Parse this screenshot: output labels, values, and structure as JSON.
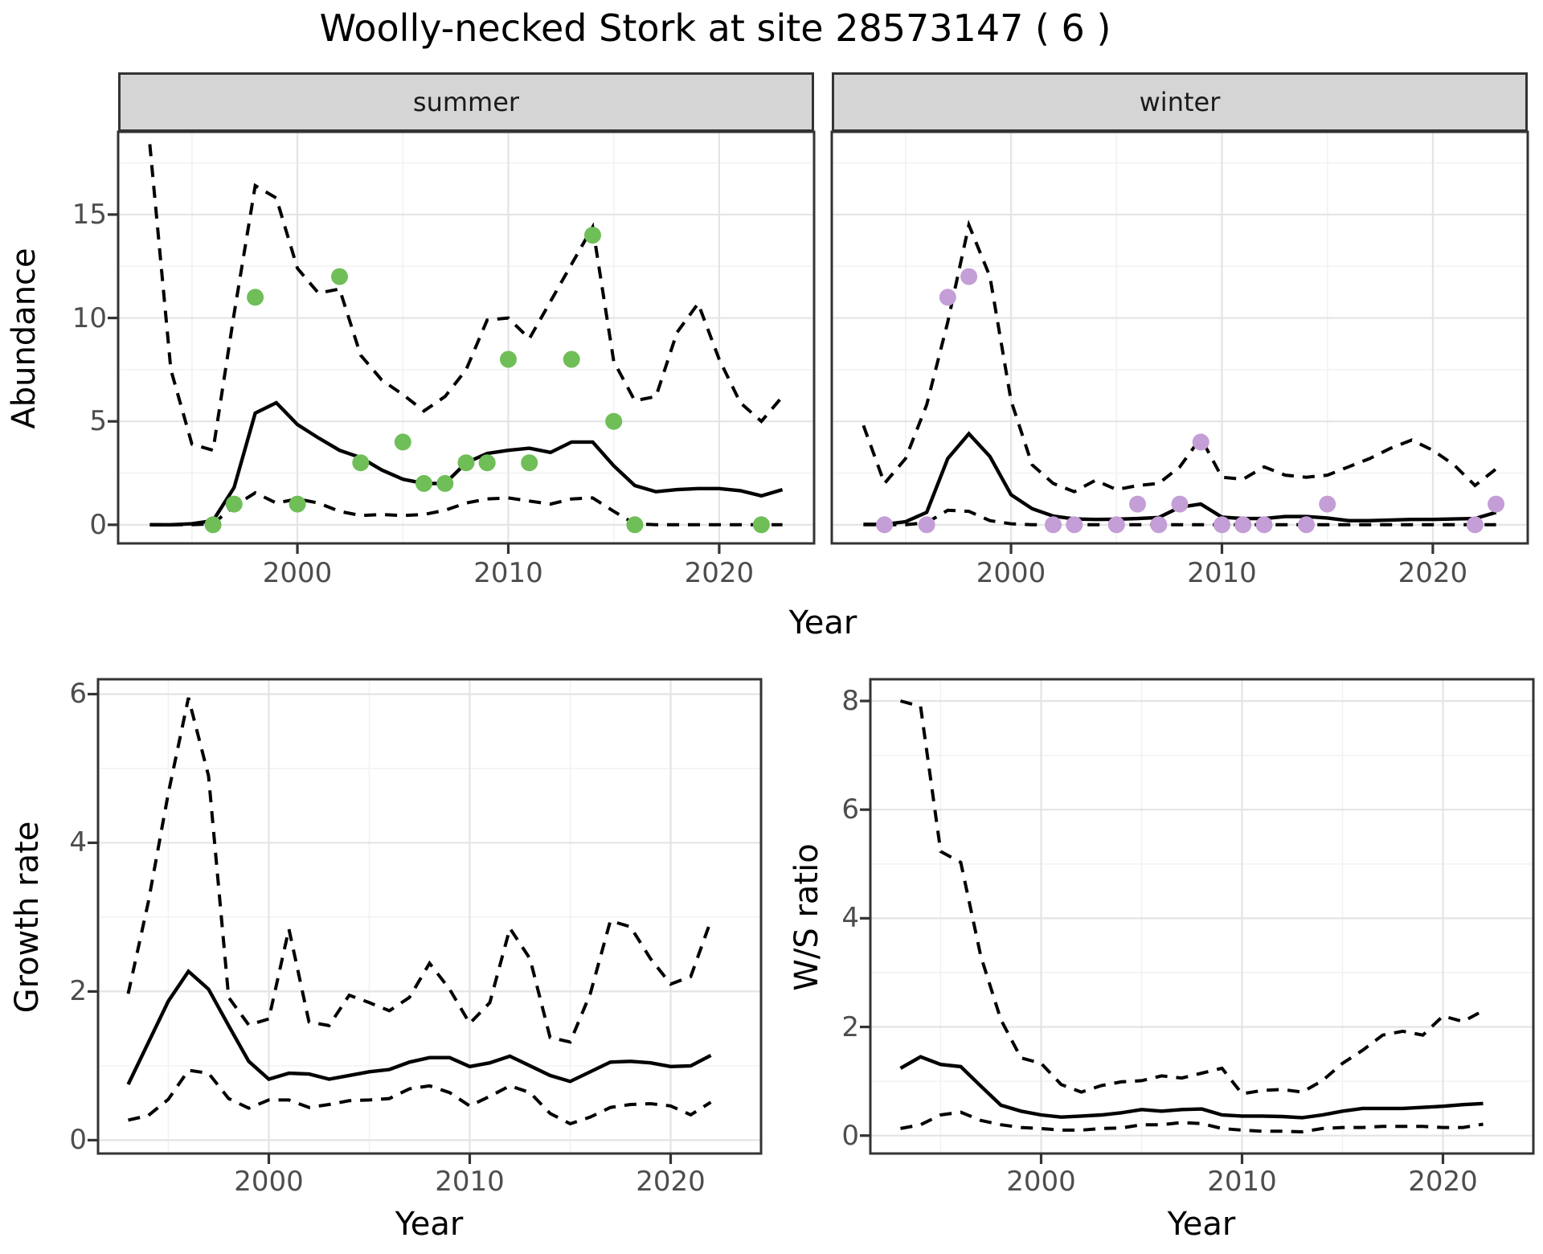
{
  "title": "Woolly-necked Stork at site 28573147 ( 6 )",
  "colors": {
    "summer_points": "#6fbe58",
    "winter_points": "#c49ed6",
    "line": "#000000",
    "strip_bg": "#d5d5d5",
    "panel_border": "#333333",
    "grid_major": "#e4e4e4",
    "grid_minor": "#f2f2f2",
    "tick_label": "#4d4d4d",
    "background": "#ffffff"
  },
  "chart_data": [
    {
      "type": "line",
      "facet_label": "summer",
      "xlabel": "Year",
      "ylabel": "Abundance",
      "xlim": [
        1991.5,
        2024.5
      ],
      "ylim": [
        -0.9,
        19.0
      ],
      "x_ticks": [
        2000,
        2010,
        2020
      ],
      "x_minor_ticks": [
        1995,
        2005,
        2015
      ],
      "y_ticks": [
        0,
        5,
        10,
        15
      ],
      "y_minor_ticks": [
        2.5,
        7.5,
        12.5,
        17.5
      ],
      "grid": true,
      "legend": "none",
      "years": [
        1993,
        1994,
        1995,
        1996,
        1997,
        1998,
        1999,
        2000,
        2001,
        2002,
        2003,
        2004,
        2005,
        2006,
        2007,
        2008,
        2009,
        2010,
        2011,
        2012,
        2013,
        2014,
        2015,
        2016,
        2017,
        2018,
        2019,
        2020,
        2021,
        2022,
        2023
      ],
      "series": [
        {
          "name": "median",
          "style": "solid",
          "values": [
            0,
            0,
            0.05,
            0.2,
            1.8,
            5.4,
            5.9,
            4.85,
            4.2,
            3.6,
            3.25,
            2.65,
            2.2,
            2.0,
            2.0,
            3.0,
            3.45,
            3.6,
            3.7,
            3.5,
            4.0,
            4.0,
            2.85,
            1.9,
            1.6,
            1.7,
            1.75,
            1.75,
            1.65,
            1.4,
            1.7
          ]
        },
        {
          "name": "ci_upper",
          "style": "dashed",
          "values": [
            18.4,
            7.5,
            3.9,
            3.6,
            10.2,
            16.4,
            15.8,
            12.4,
            11.2,
            11.4,
            8.2,
            7.0,
            6.3,
            5.5,
            6.2,
            7.5,
            9.9,
            10.0,
            9.0,
            10.8,
            12.6,
            14.4,
            7.9,
            6.0,
            6.2,
            9.3,
            10.7,
            8.0,
            5.9,
            5.0,
            6.2
          ]
        },
        {
          "name": "ci_lower",
          "style": "dashed",
          "values": [
            0,
            0,
            0,
            0.05,
            0.9,
            1.55,
            1.05,
            1.25,
            1.05,
            0.65,
            0.45,
            0.5,
            0.45,
            0.5,
            0.7,
            1.05,
            1.25,
            1.3,
            1.15,
            1.0,
            1.25,
            1.3,
            0.65,
            0.05,
            0,
            0,
            0,
            0,
            0,
            0,
            0
          ]
        }
      ],
      "points": {
        "name": "observed-counts-summer",
        "color": "#6fbe58",
        "years": [
          1996,
          1997,
          1998,
          2000,
          2002,
          2003,
          2005,
          2006,
          2007,
          2008,
          2009,
          2010,
          2011,
          2013,
          2014,
          2015,
          2016,
          2022
        ],
        "values": [
          0,
          1,
          11,
          1,
          12,
          3,
          4,
          2,
          2,
          3,
          3,
          8,
          3,
          8,
          14,
          5,
          0,
          0
        ]
      }
    },
    {
      "type": "line",
      "facet_label": "winter",
      "xlabel": "Year",
      "ylabel": "Abundance",
      "xlim": [
        1991.5,
        2024.5
      ],
      "ylim": [
        -0.9,
        19.0
      ],
      "x_ticks": [
        2000,
        2010,
        2020
      ],
      "x_minor_ticks": [
        1995,
        2005,
        2015
      ],
      "y_ticks": [
        0,
        5,
        10,
        15
      ],
      "y_minor_ticks": [
        2.5,
        7.5,
        12.5,
        17.5
      ],
      "grid": true,
      "legend": "none",
      "years": [
        1993,
        1994,
        1995,
        1996,
        1997,
        1998,
        1999,
        2000,
        2001,
        2002,
        2003,
        2004,
        2005,
        2006,
        2007,
        2008,
        2009,
        2010,
        2011,
        2012,
        2013,
        2014,
        2015,
        2016,
        2017,
        2018,
        2019,
        2020,
        2021,
        2022,
        2023
      ],
      "series": [
        {
          "name": "median",
          "style": "solid",
          "values": [
            0.02,
            0.02,
            0.15,
            0.6,
            3.2,
            4.4,
            3.3,
            1.45,
            0.78,
            0.42,
            0.28,
            0.26,
            0.27,
            0.3,
            0.35,
            0.85,
            1.0,
            0.37,
            0.3,
            0.3,
            0.4,
            0.4,
            0.33,
            0.2,
            0.2,
            0.23,
            0.26,
            0.26,
            0.28,
            0.3,
            0.6
          ]
        },
        {
          "name": "ci_upper",
          "style": "dashed",
          "values": [
            4.8,
            2.0,
            3.2,
            5.8,
            9.8,
            14.5,
            12.0,
            6.0,
            2.9,
            2.0,
            1.6,
            2.15,
            1.7,
            1.9,
            2.0,
            2.8,
            4.2,
            2.3,
            2.2,
            2.8,
            2.4,
            2.3,
            2.4,
            2.8,
            3.2,
            3.7,
            4.1,
            3.6,
            2.9,
            1.9,
            2.7
          ]
        },
        {
          "name": "ci_lower",
          "style": "dashed",
          "values": [
            0,
            0,
            0,
            0.1,
            0.7,
            0.65,
            0.2,
            0.05,
            0,
            0,
            0,
            0,
            0,
            0,
            0,
            0,
            0,
            0,
            0,
            0,
            0,
            0,
            0,
            0,
            0,
            0,
            0,
            0,
            0,
            0,
            0
          ]
        }
      ],
      "points": {
        "name": "observed-counts-winter",
        "color": "#c49ed6",
        "years": [
          1994,
          1996,
          1997,
          1998,
          2002,
          2003,
          2005,
          2006,
          2007,
          2008,
          2009,
          2010,
          2011,
          2012,
          2014,
          2015,
          2022,
          2023
        ],
        "values": [
          0,
          0,
          11,
          12,
          0,
          0,
          0,
          1,
          0,
          1,
          4,
          0,
          0,
          0,
          0,
          1,
          0,
          1
        ]
      }
    },
    {
      "type": "line",
      "facet_label": "",
      "xlabel": "Year",
      "ylabel": "Growth rate",
      "xlim": [
        1991.5,
        2024.5
      ],
      "ylim": [
        -0.18,
        6.2
      ],
      "x_ticks": [
        2000,
        2010,
        2020
      ],
      "x_minor_ticks": [
        1995,
        2005,
        2015
      ],
      "y_ticks": [
        0,
        2,
        4,
        6
      ],
      "y_minor_ticks": [
        1,
        3,
        5
      ],
      "grid": true,
      "legend": "none",
      "years": [
        1993,
        1994,
        1995,
        1996,
        1997,
        1998,
        1999,
        2000,
        2001,
        2002,
        2003,
        2004,
        2005,
        2006,
        2007,
        2008,
        2009,
        2010,
        2011,
        2012,
        2013,
        2014,
        2015,
        2016,
        2017,
        2018,
        2019,
        2020,
        2021,
        2022
      ],
      "series": [
        {
          "name": "median",
          "style": "solid",
          "values": [
            0.75,
            1.31,
            1.87,
            2.27,
            2.03,
            1.54,
            1.06,
            0.82,
            0.9,
            0.89,
            0.82,
            0.87,
            0.92,
            0.95,
            1.05,
            1.11,
            1.11,
            0.99,
            1.04,
            1.13,
            1.0,
            0.87,
            0.79,
            0.92,
            1.05,
            1.06,
            1.04,
            0.99,
            1.0,
            1.14
          ]
        },
        {
          "name": "ci_upper",
          "style": "dashed",
          "values": [
            1.97,
            3.2,
            4.67,
            5.95,
            4.9,
            1.92,
            1.55,
            1.63,
            2.84,
            1.59,
            1.54,
            1.95,
            1.85,
            1.74,
            1.92,
            2.38,
            2.03,
            1.57,
            1.85,
            2.85,
            2.44,
            1.38,
            1.32,
            1.97,
            2.95,
            2.87,
            2.44,
            2.1,
            2.2,
            2.95
          ]
        },
        {
          "name": "ci_lower",
          "style": "dashed",
          "values": [
            0.27,
            0.33,
            0.55,
            0.94,
            0.9,
            0.56,
            0.43,
            0.54,
            0.54,
            0.44,
            0.48,
            0.53,
            0.54,
            0.56,
            0.69,
            0.73,
            0.64,
            0.46,
            0.59,
            0.73,
            0.64,
            0.36,
            0.22,
            0.31,
            0.44,
            0.48,
            0.49,
            0.46,
            0.34,
            0.51
          ]
        }
      ],
      "points": null
    },
    {
      "type": "line",
      "facet_label": "",
      "xlabel": "Year",
      "ylabel": "W/S ratio",
      "xlim": [
        1991.5,
        2024.5
      ],
      "ylim": [
        -0.33,
        8.4
      ],
      "x_ticks": [
        2000,
        2010,
        2020
      ],
      "x_minor_ticks": [
        1995,
        2005,
        2015
      ],
      "y_ticks": [
        0,
        2,
        4,
        6,
        8
      ],
      "y_minor_ticks": [
        1,
        3,
        5,
        7
      ],
      "grid": true,
      "legend": "none",
      "years": [
        1993,
        1994,
        1995,
        1996,
        1997,
        1998,
        1999,
        2000,
        2001,
        2002,
        2003,
        2004,
        2005,
        2006,
        2007,
        2008,
        2009,
        2010,
        2011,
        2012,
        2013,
        2014,
        2015,
        2016,
        2017,
        2018,
        2019,
        2020,
        2021,
        2022
      ],
      "series": [
        {
          "name": "median",
          "style": "solid",
          "values": [
            1.24,
            1.45,
            1.31,
            1.27,
            0.91,
            0.56,
            0.45,
            0.38,
            0.34,
            0.36,
            0.38,
            0.42,
            0.48,
            0.45,
            0.48,
            0.49,
            0.38,
            0.36,
            0.36,
            0.35,
            0.33,
            0.38,
            0.45,
            0.5,
            0.5,
            0.5,
            0.52,
            0.54,
            0.57,
            0.59
          ]
        },
        {
          "name": "ci_upper",
          "style": "dashed",
          "values": [
            8.0,
            7.9,
            5.23,
            5.03,
            3.3,
            2.13,
            1.43,
            1.33,
            0.94,
            0.8,
            0.92,
            0.99,
            1.01,
            1.1,
            1.06,
            1.15,
            1.24,
            0.77,
            0.83,
            0.85,
            0.8,
            1.01,
            1.33,
            1.57,
            1.85,
            1.92,
            1.85,
            2.2,
            2.1,
            2.3
          ]
        },
        {
          "name": "ci_lower",
          "style": "dashed",
          "values": [
            0.13,
            0.2,
            0.38,
            0.43,
            0.28,
            0.2,
            0.15,
            0.13,
            0.1,
            0.1,
            0.13,
            0.14,
            0.2,
            0.2,
            0.24,
            0.22,
            0.13,
            0.1,
            0.08,
            0.08,
            0.07,
            0.13,
            0.15,
            0.15,
            0.17,
            0.17,
            0.17,
            0.15,
            0.15,
            0.21
          ]
        }
      ],
      "points": null
    }
  ]
}
